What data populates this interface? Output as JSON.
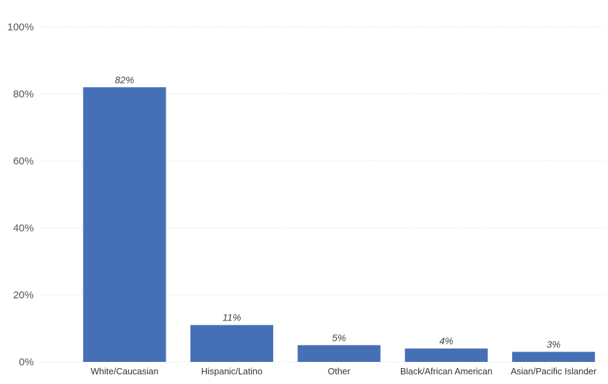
{
  "chart_data": {
    "type": "bar",
    "categories": [
      "White/Caucasian",
      "Hispanic/Latino",
      "Other",
      "Black/African American",
      "Asian/Pacific Islander"
    ],
    "values": [
      82,
      11,
      5,
      4,
      3
    ],
    "data_labels": [
      "82%",
      "11%",
      "5%",
      "4%",
      "3%"
    ],
    "y_ticks": [
      0,
      20,
      40,
      60,
      80,
      100
    ],
    "y_tick_labels": [
      "0%",
      "20%",
      "40%",
      "60%",
      "80%",
      "100%"
    ],
    "ylim": [
      0,
      100
    ],
    "title": "",
    "xlabel": "",
    "ylabel": "",
    "grid": true,
    "legend": "none",
    "bar_color": "#4670B6"
  }
}
